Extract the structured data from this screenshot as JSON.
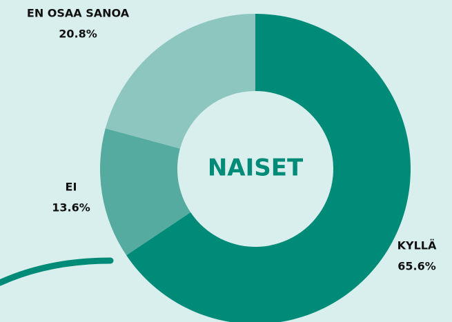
{
  "chart_data": {
    "type": "donut",
    "center_label": "NAISET",
    "categories": [
      "KYLLÄ",
      "EI",
      "EN OSAA SANOA"
    ],
    "values": [
      65.6,
      13.6,
      20.8
    ],
    "value_labels": [
      "65.6%",
      "13.6%",
      "20.8%"
    ],
    "colors": [
      "#008a78",
      "#55ab9f",
      "#8cc6bf"
    ]
  }
}
